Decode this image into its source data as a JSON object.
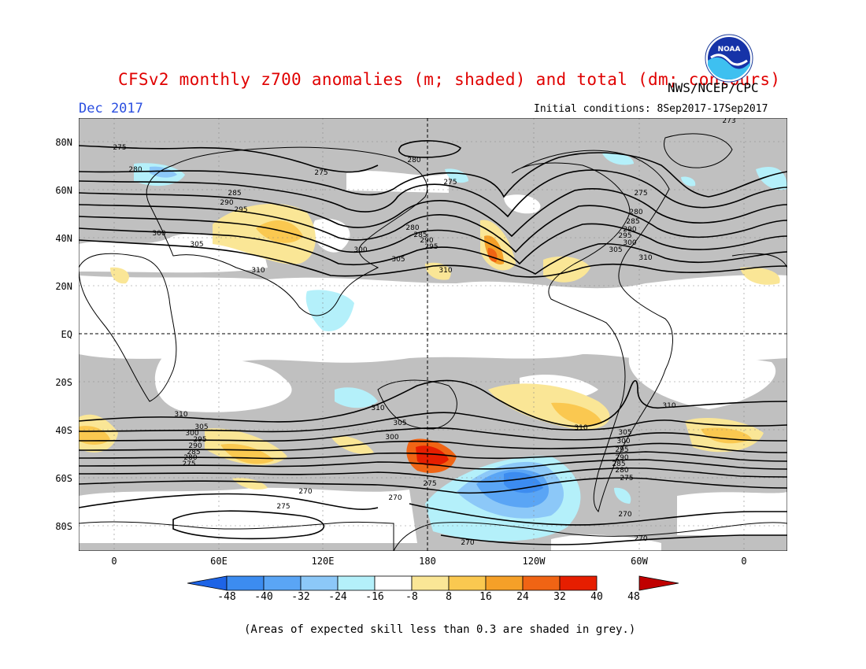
{
  "title": "CFSv2 monthly z700 anomalies (m; shaded) and total (dm; contours)",
  "agency": "NWS/NCEP/CPC",
  "logo_text": "NOAA",
  "month": "Dec 2017",
  "initial_conditions": "Initial conditions: 8Sep2017-17Sep2017",
  "footnote": "(Areas of expected skill less than 0.3 are shaded in grey.)",
  "lat_labels": [
    "80N",
    "60N",
    "40N",
    "20N",
    "EQ",
    "20S",
    "40S",
    "60S",
    "80S"
  ],
  "lon_labels": [
    "0",
    "60E",
    "120E",
    "180",
    "120W",
    "60W",
    "0"
  ],
  "colorbar": {
    "labels": [
      "-48",
      "-40",
      "-32",
      "-24",
      "-16",
      "-8",
      "8",
      "16",
      "24",
      "32",
      "40",
      "48"
    ],
    "colors": [
      "#1e64e6",
      "#3c8cf0",
      "#5aa5f5",
      "#8cc8f8",
      "#b4f0fa",
      "#ffffff",
      "#fae696",
      "#fac850",
      "#f5a028",
      "#f06414",
      "#e61e00",
      "#c80000"
    ]
  },
  "contour_labels": [
    {
      "v": "275"
    },
    {
      "v": "280"
    },
    {
      "v": "275"
    },
    {
      "v": "280"
    },
    {
      "v": "275"
    },
    {
      "v": "273"
    },
    {
      "v": "285"
    },
    {
      "v": "290"
    },
    {
      "v": "295"
    },
    {
      "v": "300"
    },
    {
      "v": "305"
    },
    {
      "v": "310"
    },
    {
      "v": "280"
    },
    {
      "v": "285"
    },
    {
      "v": "290"
    },
    {
      "v": "295"
    },
    {
      "v": "300"
    },
    {
      "v": "305"
    },
    {
      "v": "310"
    },
    {
      "v": "275"
    },
    {
      "v": "280"
    },
    {
      "v": "285"
    },
    {
      "v": "290"
    },
    {
      "v": "295"
    },
    {
      "v": "300"
    },
    {
      "v": "305"
    },
    {
      "v": "310"
    },
    {
      "v": "310"
    },
    {
      "v": "310"
    },
    {
      "v": "305"
    },
    {
      "v": "300"
    },
    {
      "v": "310"
    },
    {
      "v": "305"
    },
    {
      "v": "300"
    },
    {
      "v": "295"
    },
    {
      "v": "290"
    },
    {
      "v": "285"
    },
    {
      "v": "280"
    },
    {
      "v": "275"
    },
    {
      "v": "305"
    },
    {
      "v": "300"
    },
    {
      "v": "295"
    },
    {
      "v": "290"
    },
    {
      "v": "285"
    },
    {
      "v": "280"
    },
    {
      "v": "275"
    },
    {
      "v": "275"
    },
    {
      "v": "270"
    },
    {
      "v": "275"
    },
    {
      "v": "270"
    },
    {
      "v": "270"
    },
    {
      "v": "270"
    },
    {
      "v": "270"
    },
    {
      "v": "310"
    }
  ]
}
